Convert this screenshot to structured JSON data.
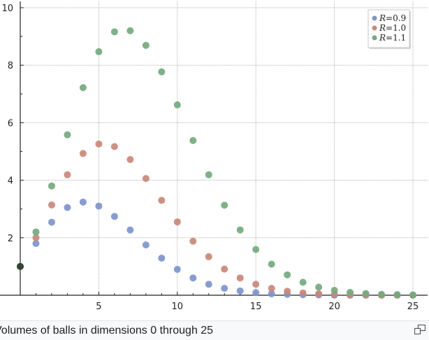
{
  "caption": {
    "text": "Volumes of balls in dimensions 0 through 25",
    "enlarge_icon": "enlarge-icon"
  },
  "chart_data": {
    "type": "scatter",
    "xlim": [
      0,
      25
    ],
    "ylim": [
      0,
      10
    ],
    "x_ticks": [
      5,
      10,
      15,
      20,
      25
    ],
    "y_ticks": [
      2,
      4,
      6,
      8,
      10
    ],
    "grid": true,
    "legend_position": "top-right",
    "x": [
      0,
      1,
      2,
      3,
      4,
      5,
      6,
      7,
      8,
      9,
      10,
      11,
      12,
      13,
      14,
      15,
      16,
      17,
      18,
      19,
      20,
      21,
      22,
      23,
      24,
      25
    ],
    "series": [
      {
        "name": "R = 0.9",
        "legend": {
          "var": "R",
          "value": "0.9"
        },
        "color": "#7e94cc",
        "values": [
          1,
          1.8,
          2.54,
          3.05,
          3.24,
          3.1,
          2.74,
          2.27,
          1.75,
          1.29,
          0.9,
          0.6,
          0.38,
          0.24,
          0.15,
          0.09,
          0.05,
          0.03,
          0.02,
          0.01,
          0,
          0,
          0,
          0,
          0,
          0
        ]
      },
      {
        "name": "R = 1.0",
        "legend": {
          "var": "R",
          "value": "1.0"
        },
        "color": "#c98878",
        "values": [
          1,
          2,
          3.14,
          4.19,
          4.93,
          5.26,
          5.17,
          4.72,
          4.06,
          3.3,
          2.55,
          1.88,
          1.34,
          0.91,
          0.6,
          0.38,
          0.24,
          0.14,
          0.08,
          0.05,
          0.03,
          0.01,
          0.01,
          0,
          0,
          0
        ]
      },
      {
        "name": "R = 1.1",
        "legend": {
          "var": "R",
          "value": "1.1"
        },
        "color": "#74a97e",
        "values": [
          1,
          2.2,
          3.8,
          5.58,
          7.22,
          8.47,
          9.16,
          9.2,
          8.69,
          7.77,
          6.62,
          5.38,
          4.19,
          3.13,
          2.27,
          1.59,
          1.08,
          0.71,
          0.45,
          0.28,
          0.17,
          0.1,
          0.06,
          0.03,
          0.02,
          0.01
        ]
      }
    ]
  }
}
